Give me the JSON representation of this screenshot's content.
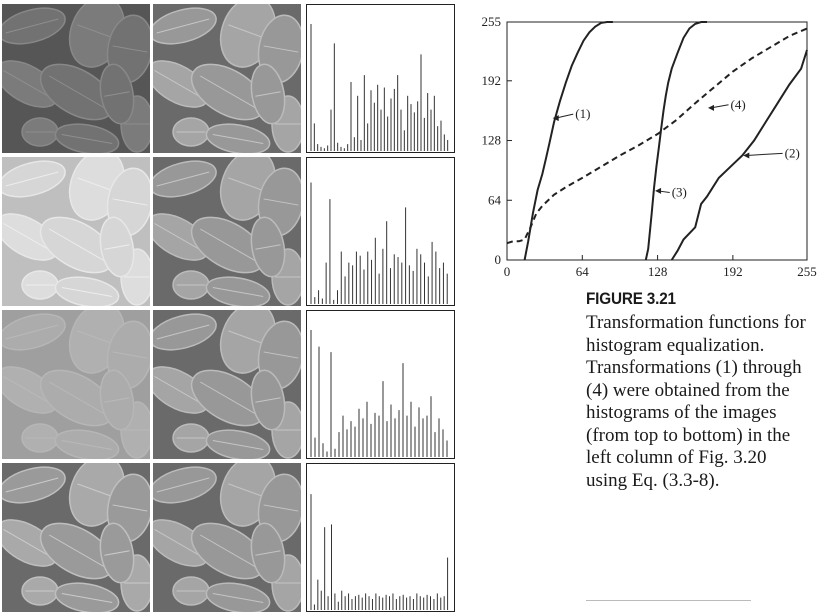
{
  "figure": {
    "label": "FIGURE 3.21",
    "caption": "Transformation functions for histogram equalization. Transformations (1) through (4) were obtained from the histograms of the images (from top to bottom) in the left column of Fig. 3.20 using Eq. (3.3-8)."
  },
  "image_rows": [
    {
      "left_tone": "#6a6a6a",
      "left_contrast": 0.55,
      "right_tone": "#8a8a8a",
      "hist": [
        92,
        20,
        5,
        3,
        2,
        4,
        30,
        78,
        6,
        3,
        2,
        5,
        50,
        10,
        40,
        8,
        55,
        20,
        44,
        35,
        48,
        30,
        46,
        25,
        38,
        45,
        55,
        30,
        15,
        40,
        34,
        28,
        36,
        70,
        24,
        42,
        30,
        40,
        18,
        22,
        12,
        8
      ]
    },
    {
      "left_tone": "#cfcfcf",
      "left_contrast": 0.45,
      "right_tone": "#8a8a8a",
      "hist": [
        88,
        5,
        10,
        4,
        30,
        76,
        3,
        10,
        38,
        20,
        30,
        28,
        38,
        35,
        25,
        38,
        32,
        48,
        22,
        40,
        60,
        26,
        36,
        34,
        30,
        70,
        28,
        24,
        40,
        36,
        30,
        20,
        45,
        38,
        26,
        30,
        22
      ]
    },
    {
      "left_tone": "#a8a8a8",
      "left_contrast": 0.25,
      "right_tone": "#8a8a8a",
      "hist": [
        92,
        14,
        80,
        10,
        4,
        76,
        6,
        18,
        30,
        20,
        26,
        22,
        35,
        28,
        40,
        24,
        32,
        30,
        55,
        26,
        38,
        28,
        34,
        68,
        30,
        40,
        22,
        36,
        28,
        30,
        44,
        18,
        28,
        20,
        12
      ]
    },
    {
      "left_tone": "#8c8c8c",
      "left_contrast": 0.95,
      "right_tone": "#8a8a8a",
      "hist": [
        84,
        4,
        22,
        14,
        60,
        10,
        62,
        12,
        6,
        14,
        10,
        12,
        8,
        10,
        11,
        9,
        12,
        10,
        8,
        12,
        10,
        9,
        11,
        10,
        12,
        8,
        10,
        11,
        9,
        10,
        8,
        12,
        10,
        9,
        11,
        10,
        8,
        12,
        9,
        10,
        38
      ]
    }
  ],
  "chart_data": {
    "type": "line",
    "title": "",
    "xlabel": "",
    "ylabel": "",
    "xlim": [
      0,
      255
    ],
    "ylim": [
      0,
      255
    ],
    "x_ticks": [
      "0",
      "64",
      "128",
      "192",
      "255"
    ],
    "y_ticks": [
      "0",
      "64",
      "128",
      "192",
      "255"
    ],
    "grid": false,
    "series": [
      {
        "name": "(1)",
        "style": "solid",
        "x": [
          15,
          18,
          22,
          26,
          30,
          33,
          36,
          40,
          45,
          50,
          55,
          60,
          65,
          70,
          75,
          80,
          85,
          90
        ],
        "y": [
          0,
          20,
          50,
          75,
          92,
          108,
          125,
          148,
          170,
          190,
          208,
          222,
          235,
          244,
          250,
          254,
          255,
          255
        ]
      },
      {
        "name": "(3)",
        "style": "solid",
        "x": [
          118,
          120,
          121,
          123,
          125,
          127,
          129,
          131,
          133,
          135,
          137,
          140,
          145,
          150,
          155,
          160,
          165,
          170
        ],
        "y": [
          0,
          12,
          25,
          50,
          78,
          100,
          120,
          140,
          160,
          176,
          190,
          205,
          222,
          238,
          248,
          253,
          255,
          255
        ]
      },
      {
        "name": "(2)",
        "style": "solid",
        "x": [
          140,
          145,
          150,
          160,
          165,
          170,
          175,
          180,
          190,
          200,
          210,
          220,
          230,
          240,
          250,
          255
        ],
        "y": [
          0,
          10,
          22,
          35,
          60,
          68,
          78,
          88,
          100,
          112,
          128,
          148,
          168,
          188,
          205,
          225
        ]
      },
      {
        "name": "(4)",
        "style": "dashed",
        "x": [
          0,
          5,
          10,
          15,
          20,
          25,
          30,
          40,
          50,
          64,
          80,
          96,
          112,
          128,
          144,
          160,
          176,
          192,
          208,
          224,
          240,
          255
        ],
        "y": [
          18,
          20,
          20,
          22,
          35,
          50,
          58,
          70,
          78,
          88,
          100,
          112,
          123,
          135,
          150,
          168,
          185,
          202,
          216,
          228,
          240,
          248
        ]
      }
    ],
    "annotations": [
      {
        "text": "(1)",
        "x": 58,
        "y": 152,
        "target_x": 38,
        "target_y": 152
      },
      {
        "text": "(4)",
        "x": 190,
        "y": 162,
        "target_x": 170,
        "target_y": 163
      },
      {
        "text": "(2)",
        "x": 236,
        "y": 110,
        "target_x": 200,
        "target_y": 112
      },
      {
        "text": "(3)",
        "x": 140,
        "y": 68,
        "target_x": 125,
        "target_y": 74
      }
    ]
  }
}
